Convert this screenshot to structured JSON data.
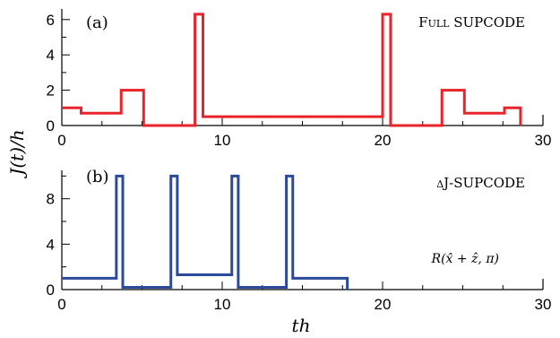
{
  "figure": {
    "ylabel": "J(t)/h",
    "xlabel": "th"
  },
  "chart_data": [
    {
      "type": "line",
      "step": true,
      "panel_label": "(a)",
      "title": "Full SUPCODE",
      "color": "#e8232a",
      "xlim": [
        0,
        30
      ],
      "ylim": [
        0,
        6.6
      ],
      "xticks": [
        0,
        10,
        20,
        30
      ],
      "xtick_labels": [
        "0",
        "10",
        "20",
        "30"
      ],
      "yticks": [
        0,
        2,
        4,
        6
      ],
      "ytick_labels": [
        "0",
        "2",
        "4",
        "6"
      ],
      "series": [
        {
          "x": [
            0,
            1.2,
            1.2,
            3.7,
            3.7,
            5.1,
            5.1,
            8.3,
            8.3,
            8.8,
            8.8,
            20.0,
            20.0,
            20.5,
            20.5,
            23.7,
            23.7,
            25.1,
            25.1,
            27.6,
            27.6,
            28.6,
            28.6
          ],
          "y": [
            1.0,
            1.0,
            0.7,
            0.7,
            2.0,
            2.0,
            0,
            0,
            6.3,
            6.3,
            0.5,
            0.5,
            6.3,
            6.3,
            0,
            0,
            2.0,
            2.0,
            0.7,
            0.7,
            1.0,
            1.0,
            0
          ]
        }
      ]
    },
    {
      "type": "line",
      "step": true,
      "panel_label": "(b)",
      "title": "δJ-SUPCODE",
      "annotation": "R(x̂ + ẑ, π)",
      "color": "#2b4a9a",
      "xlim": [
        0,
        30
      ],
      "ylim": [
        0,
        10.5
      ],
      "xticks": [
        0,
        10,
        20,
        30
      ],
      "xtick_labels": [
        "0",
        "10",
        "20",
        "30"
      ],
      "yticks": [
        0,
        4,
        8
      ],
      "ytick_labels": [
        "0",
        "4",
        "8"
      ],
      "series": [
        {
          "x": [
            0,
            3.4,
            3.4,
            3.8,
            3.8,
            6.8,
            6.8,
            7.2,
            7.2,
            10.6,
            10.6,
            11.0,
            11.0,
            14.0,
            14.0,
            14.4,
            14.4,
            17.8,
            17.8
          ],
          "y": [
            1.0,
            1.0,
            10.0,
            10.0,
            0.2,
            0.2,
            10.0,
            10.0,
            1.3,
            1.3,
            10.0,
            10.0,
            0.2,
            0.2,
            10.0,
            10.0,
            1.0,
            1.0,
            0
          ]
        }
      ]
    }
  ]
}
